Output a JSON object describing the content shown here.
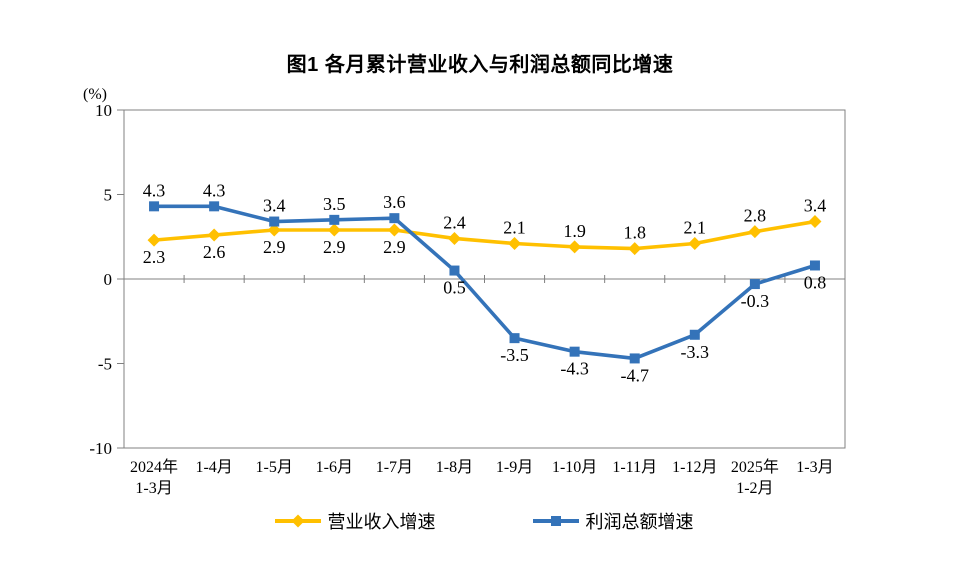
{
  "title": "图1  各月累计营业收入与利润总额同比增速",
  "y_axis_unit": "(%)",
  "chart_data": {
    "type": "line",
    "categories": [
      [
        "2024年",
        "1-3月"
      ],
      [
        "1-4月"
      ],
      [
        "1-5月"
      ],
      [
        "1-6月"
      ],
      [
        "1-7月"
      ],
      [
        "1-8月"
      ],
      [
        "1-9月"
      ],
      [
        "1-10月"
      ],
      [
        "1-11月"
      ],
      [
        "1-12月"
      ],
      [
        "2025年",
        "1-2月"
      ],
      [
        "1-3月"
      ]
    ],
    "series": [
      {
        "id": "operating-revenue-growth",
        "name": "营业收入增速",
        "color": "#FFC000",
        "marker": "diamond",
        "values": [
          2.3,
          2.6,
          2.9,
          2.9,
          2.9,
          2.4,
          2.1,
          1.9,
          1.8,
          2.1,
          2.8,
          3.4
        ],
        "label_sides": [
          "below",
          "below",
          "below",
          "below",
          "below",
          "above",
          "above",
          "above",
          "above",
          "above",
          "above",
          "above"
        ]
      },
      {
        "id": "total-profit-growth",
        "name": "利润总额增速",
        "color": "#3473B9",
        "marker": "square",
        "values": [
          4.3,
          4.3,
          3.4,
          3.5,
          3.6,
          0.5,
          -3.5,
          -4.3,
          -4.7,
          -3.3,
          -0.3,
          0.8
        ],
        "label_sides": [
          "above",
          "above",
          "above",
          "above",
          "above",
          "below",
          "below",
          "below",
          "below",
          "below",
          "below",
          "below"
        ]
      }
    ],
    "ylim": [
      -10,
      10
    ],
    "yticks": [
      10,
      5,
      0,
      -5,
      -10
    ],
    "grid": "zero-line-only",
    "legend_position": "bottom",
    "axis_color": "#808080"
  }
}
